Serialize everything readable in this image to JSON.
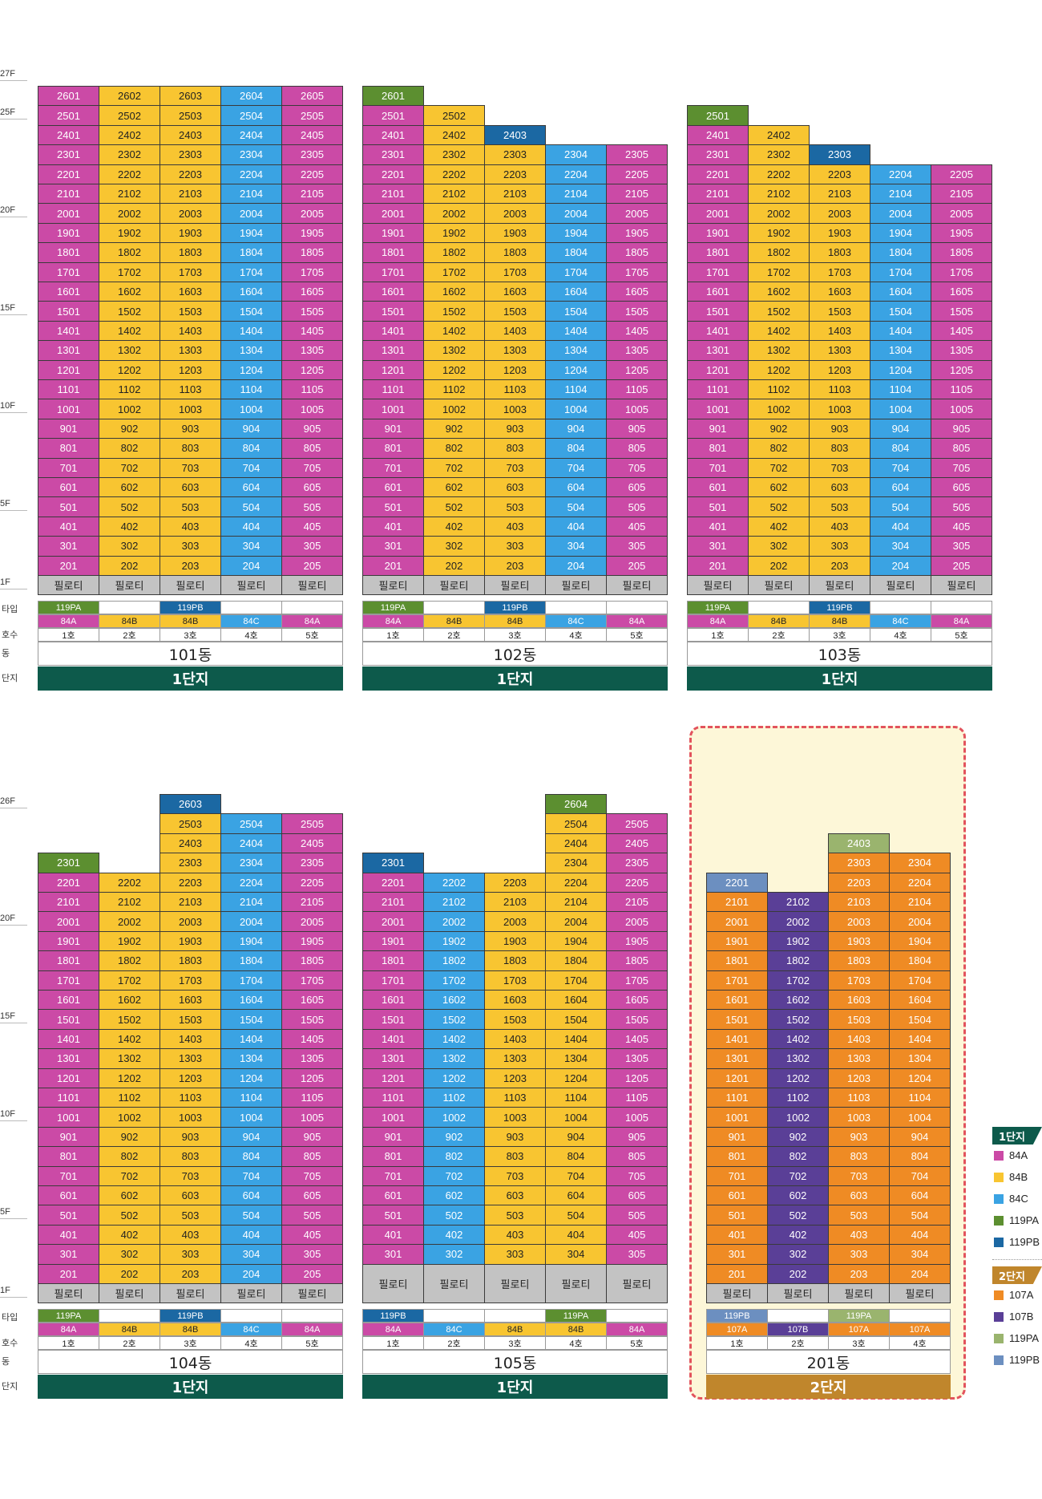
{
  "colors": {
    "84A": "#cb4aa6",
    "84B": "#f8c531",
    "84C": "#3aa3e3",
    "119PA": "#5c8f30",
    "119PB": "#1b68a3",
    "107A": "#ef8b24",
    "107B": "#5a3f97",
    "2_119PA": "#9ab46e",
    "2_119PB": "#6c8fc0",
    "piloti": "#c3c3c3",
    "complex1": "#0d5a4b",
    "complex2": "#c0862c"
  },
  "row_labels": {
    "type": "타입",
    "unit": "호수",
    "building": "동",
    "complex": "단지"
  },
  "piloti_label": "필로티",
  "top_floor_labels": [
    "27F",
    "25F",
    "20F",
    "15F",
    "10F",
    "5F",
    "1F"
  ],
  "bottom_floor_labels": [
    "26F",
    "20F",
    "15F",
    "10F",
    "5F",
    "1F"
  ],
  "buildings": [
    {
      "name": "101동",
      "complex": "1단지",
      "complex_key": "complex1",
      "lines": [
        {
          "unit": "1호",
          "type": "84A",
          "big": "119PA",
          "max": 26,
          "top": {
            "27": "119PA"
          }
        },
        {
          "unit": "2호",
          "type": "84B",
          "big": "",
          "max": 26,
          "top": {}
        },
        {
          "unit": "3호",
          "type": "84B",
          "big": "119PB",
          "max": 26,
          "top": {
            "27": "119PB"
          }
        },
        {
          "unit": "4호",
          "type": "84C",
          "big": "",
          "max": 26,
          "top": {}
        },
        {
          "unit": "5호",
          "type": "84A",
          "big": "",
          "max": 26,
          "top": {}
        }
      ],
      "top_floor": 27
    },
    {
      "name": "102동",
      "complex": "1단지",
      "complex_key": "complex1",
      "lines": [
        {
          "unit": "1호",
          "type": "84A",
          "big": "119PA",
          "max": 26,
          "top": {
            "26": "119PA"
          }
        },
        {
          "unit": "2호",
          "type": "84B",
          "big": "",
          "max": 25,
          "top": {}
        },
        {
          "unit": "3호",
          "type": "84B",
          "big": "119PB",
          "max": 24,
          "top": {
            "24": "119PB"
          }
        },
        {
          "unit": "4호",
          "type": "84C",
          "big": "",
          "max": 23,
          "top": {}
        },
        {
          "unit": "5호",
          "type": "84A",
          "big": "",
          "max": 23,
          "top": {}
        }
      ],
      "top_floor": 27
    },
    {
      "name": "103동",
      "complex": "1단지",
      "complex_key": "complex1",
      "lines": [
        {
          "unit": "1호",
          "type": "84A",
          "big": "119PA",
          "max": 25,
          "top": {
            "25": "119PA"
          }
        },
        {
          "unit": "2호",
          "type": "84B",
          "big": "",
          "max": 24,
          "top": {}
        },
        {
          "unit": "3호",
          "type": "84B",
          "big": "119PB",
          "max": 23,
          "top": {
            "23": "119PB"
          }
        },
        {
          "unit": "4호",
          "type": "84C",
          "big": "",
          "max": 22,
          "top": {}
        },
        {
          "unit": "5호",
          "type": "84A",
          "big": "",
          "max": 22,
          "top": {}
        }
      ],
      "top_floor": 27
    },
    {
      "name": "104동",
      "complex": "1단지",
      "complex_key": "complex1",
      "lines": [
        {
          "unit": "1호",
          "type": "84A",
          "big": "119PA",
          "max": 23,
          "top": {
            "23": "119PA"
          }
        },
        {
          "unit": "2호",
          "type": "84B",
          "big": "",
          "max": 22,
          "top": {}
        },
        {
          "unit": "3호",
          "type": "84B",
          "big": "119PB",
          "max": 26,
          "top": {
            "26": "119PB"
          }
        },
        {
          "unit": "4호",
          "type": "84C",
          "big": "",
          "max": 25,
          "top": {}
        },
        {
          "unit": "5호",
          "type": "84A",
          "big": "",
          "max": 25,
          "top": {}
        }
      ],
      "top_floor": 26,
      "piloti_floors": 1
    },
    {
      "name": "105동",
      "complex": "1단지",
      "complex_key": "complex1",
      "lines": [
        {
          "unit": "1호",
          "type": "84A",
          "big": "119PB",
          "max": 23,
          "top": {
            "23": "119PB"
          },
          "start": 3
        },
        {
          "unit": "2호",
          "type": "84C",
          "big": "",
          "max": 22,
          "top": {},
          "start": 3
        },
        {
          "unit": "3호",
          "type": "84B",
          "big": "",
          "max": 22,
          "top": {},
          "start": 3
        },
        {
          "unit": "4호",
          "type": "84B",
          "big": "119PA",
          "max": 26,
          "top": {
            "26": "119PA"
          },
          "start": 3
        },
        {
          "unit": "5호",
          "type": "84A",
          "big": "",
          "max": 25,
          "top": {},
          "start": 3
        }
      ],
      "top_floor": 26,
      "piloti_floors": 2
    },
    {
      "name": "201동",
      "complex": "2단지",
      "complex_key": "complex2",
      "lines": [
        {
          "unit": "1호",
          "type": "107A",
          "big": "119PB",
          "max": 22,
          "top": {
            "22": "2_119PB"
          }
        },
        {
          "unit": "2호",
          "type": "107B",
          "big": "",
          "max": 21,
          "top": {}
        },
        {
          "unit": "3호",
          "type": "107A",
          "big": "119PA",
          "max": 24,
          "top": {
            "24": "2_119PA"
          }
        },
        {
          "unit": "4호",
          "type": "107A",
          "big": "",
          "max": 23,
          "top": {}
        }
      ],
      "top_floor": 26,
      "piloti_floors": 1
    }
  ],
  "legend": {
    "complex1": {
      "title": "1단지",
      "items": [
        {
          "label": "84A",
          "color_key": "84A"
        },
        {
          "label": "84B",
          "color_key": "84B"
        },
        {
          "label": "84C",
          "color_key": "84C"
        },
        {
          "label": "119PA",
          "color_key": "119PA"
        },
        {
          "label": "119PB",
          "color_key": "119PB"
        }
      ]
    },
    "complex2": {
      "title": "2단지",
      "items": [
        {
          "label": "107A",
          "color_key": "107A"
        },
        {
          "label": "107B",
          "color_key": "107B"
        },
        {
          "label": "119PA",
          "color_key": "2_119PA"
        },
        {
          "label": "119PB",
          "color_key": "2_119PB"
        }
      ]
    }
  }
}
